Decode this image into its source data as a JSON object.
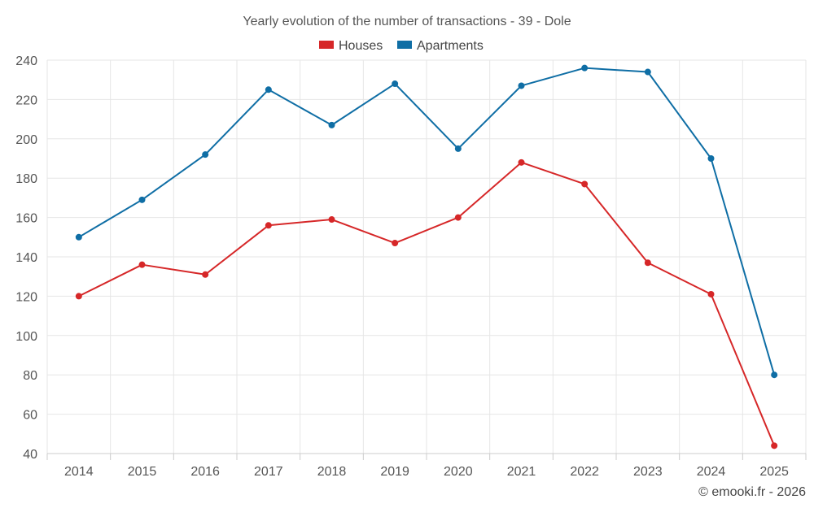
{
  "chart_data": {
    "type": "line",
    "title": "Yearly evolution of the number of transactions - 39 - Dole",
    "categories": [
      "2014",
      "2015",
      "2016",
      "2017",
      "2018",
      "2019",
      "2020",
      "2021",
      "2022",
      "2023",
      "2024",
      "2025"
    ],
    "series": [
      {
        "name": "Houses",
        "color": "#d62728",
        "values": [
          120,
          136,
          131,
          156,
          159,
          147,
          160,
          188,
          177,
          137,
          121,
          44
        ]
      },
      {
        "name": "Apartments",
        "color": "#0f6ea5",
        "values": [
          150,
          169,
          192,
          225,
          207,
          228,
          195,
          227,
          236,
          234,
          190,
          80
        ]
      }
    ],
    "xlabel": "",
    "ylabel": "",
    "ylim": [
      40,
      240
    ],
    "yticks": [
      40,
      60,
      80,
      100,
      120,
      140,
      160,
      180,
      200,
      220,
      240
    ],
    "grid": true,
    "legend": "top-center"
  },
  "credit": "© emooki.fr - 2026"
}
